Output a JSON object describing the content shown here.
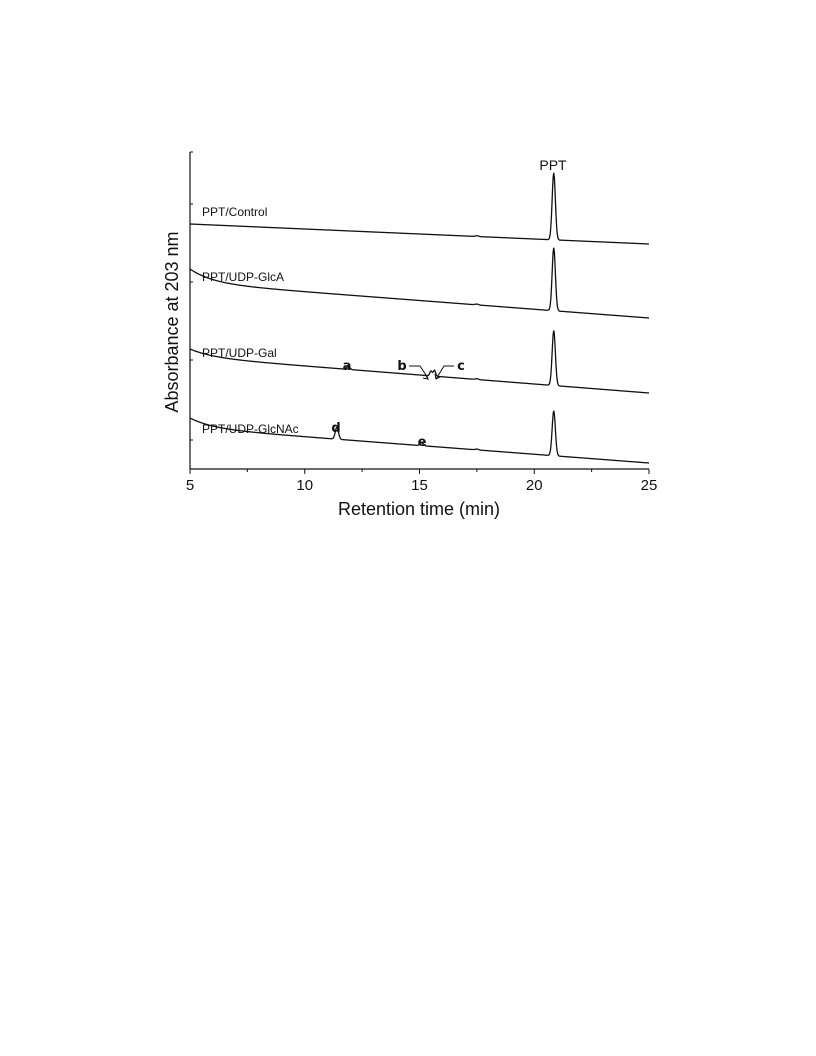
{
  "chart_data": {
    "type": "line",
    "title": "",
    "xlabel": "Retention time (min)",
    "ylabel": "Absorbance at 203 nm",
    "xlim": [
      5,
      25
    ],
    "xticks": [
      "5",
      "10",
      "15",
      "20",
      "25"
    ],
    "grid": false,
    "legend": "none",
    "series": [
      {
        "name": "PPT/Control",
        "peaks": [
          {
            "x": 20.85,
            "label": "PPT"
          }
        ]
      },
      {
        "name": "PPT/UDP-GlcA",
        "peaks": [
          {
            "x": 20.85
          }
        ]
      },
      {
        "name": "PPT/UDP-Gal",
        "peaks": [
          {
            "x": 11.9,
            "label": "a"
          },
          {
            "x": 15.5,
            "label": "b"
          },
          {
            "x": 15.65,
            "label": "c"
          },
          {
            "x": 20.85
          }
        ]
      },
      {
        "name": "PPT/UDP-GlcNAc",
        "peaks": [
          {
            "x": 11.4,
            "label": "d"
          },
          {
            "x": 15.1,
            "label": "e"
          },
          {
            "x": 20.85
          }
        ]
      }
    ]
  }
}
